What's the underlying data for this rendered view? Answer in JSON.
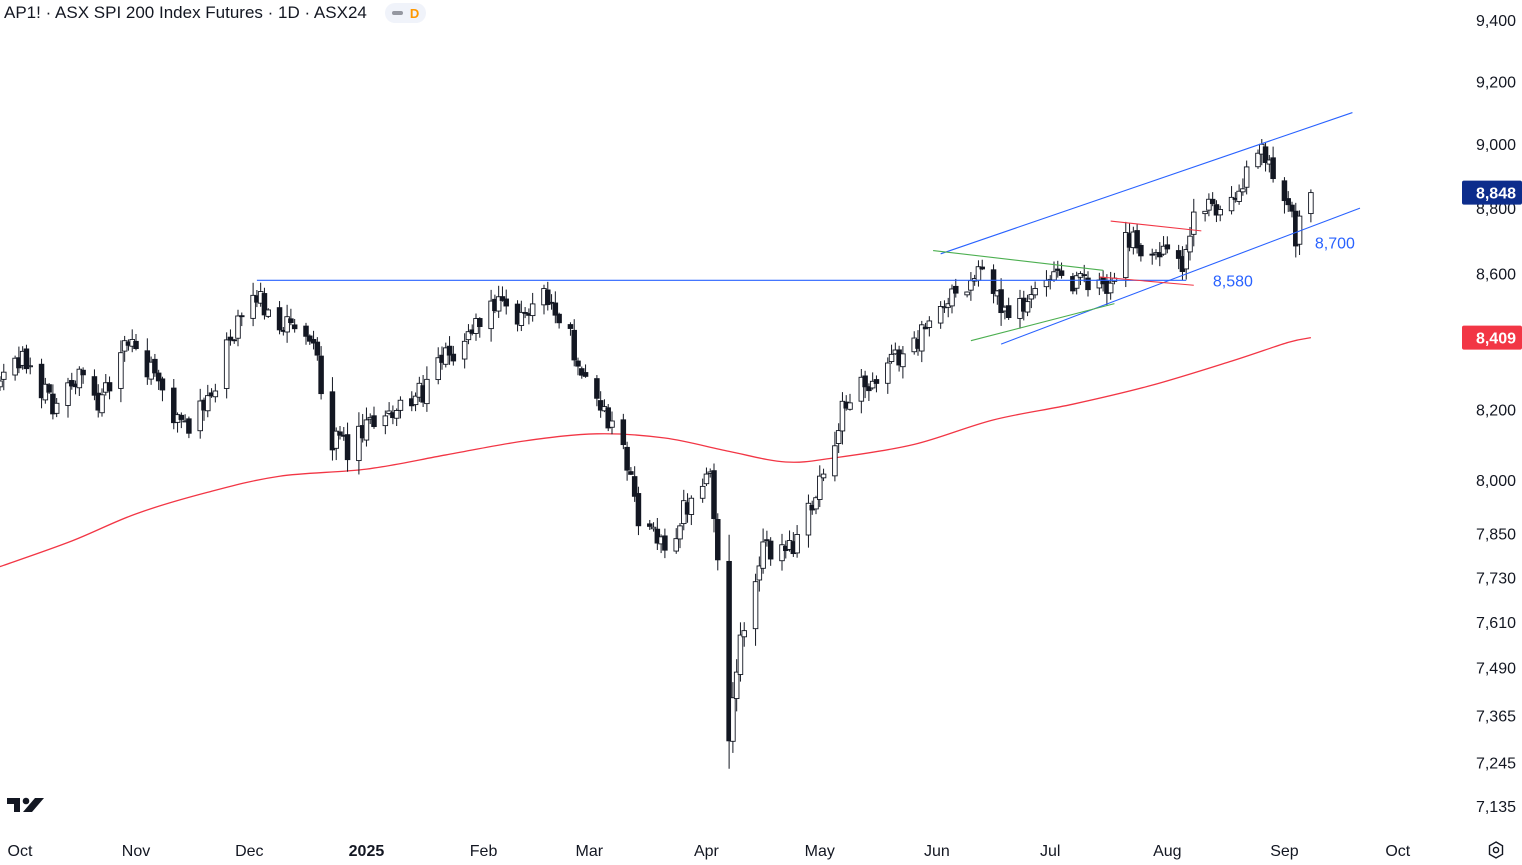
{
  "header": {
    "title": "AP1! · ASX SPI 200 Index Futures · 1D · ASX24",
    "badge": "D"
  },
  "colors": {
    "up": "#ffffff",
    "down": "#131722",
    "wick": "#131722",
    "ma": "#f23645",
    "blue_line": "#2962ff",
    "green_line": "#4caf50",
    "red_line": "#f23645",
    "last_price": "#0d2d8c",
    "ma_label": "#f23645"
  },
  "icons": {
    "logo": "tradingview-logo-icon",
    "settings": "settings-icon"
  },
  "chart_data": {
    "type": "candlestick",
    "title": "AP1! · ASX SPI 200 Index Futures · 1D · ASX24",
    "x_ticks": [
      "Oct",
      "Nov",
      "Dec",
      "2025",
      "Feb",
      "Mar",
      "Apr",
      "May",
      "Jun",
      "Jul",
      "Aug",
      "Sep",
      "Oct"
    ],
    "y_ticks": [
      9400,
      9200,
      9000,
      8800,
      8600,
      8400,
      8200,
      8000,
      7850,
      7730,
      7610,
      7490,
      7365,
      7245,
      7135
    ],
    "y_tick_labels": [
      "9,400",
      "9,200",
      "9,000",
      "8,800",
      "8,600",
      "8,400",
      "8,200",
      "8,000",
      "7,850",
      "7,730",
      "7,610",
      "7,490",
      "7,365",
      "7,245",
      "7,135"
    ],
    "y_scale": "log",
    "ylim": [
      7080,
      9440
    ],
    "xlim": [
      "2024-09-26",
      "2025-10-18"
    ],
    "last_price": {
      "value": 8848,
      "label": "8,848"
    },
    "moving_average": {
      "name": "",
      "current": 8409,
      "label": "8,409",
      "points": [
        [
          "2024-09-26",
          7760
        ],
        [
          "2024-10-15",
          7830
        ],
        [
          "2024-11-01",
          7905
        ],
        [
          "2024-11-20",
          7965
        ],
        [
          "2024-12-09",
          8010
        ],
        [
          "2025-01-01",
          8030
        ],
        [
          "2025-01-22",
          8070
        ],
        [
          "2025-02-12",
          8110
        ],
        [
          "2025-03-03",
          8130
        ],
        [
          "2025-03-21",
          8118
        ],
        [
          "2025-04-07",
          8080
        ],
        [
          "2025-04-22",
          8050
        ],
        [
          "2025-05-05",
          8062
        ],
        [
          "2025-05-26",
          8100
        ],
        [
          "2025-06-16",
          8170
        ],
        [
          "2025-07-07",
          8215
        ],
        [
          "2025-07-28",
          8270
        ],
        [
          "2025-08-18",
          8340
        ],
        [
          "2025-09-02",
          8395
        ],
        [
          "2025-09-08",
          8409
        ]
      ]
    },
    "annotations": [
      {
        "label": "8,580",
        "value": 8580
      },
      {
        "label": "8,700",
        "value": 8700
      }
    ],
    "trendlines": [
      {
        "color": "blue",
        "from": [
          "2024-12-03",
          8580
        ],
        "to": [
          "2025-08-06",
          8580
        ]
      },
      {
        "color": "blue",
        "from": [
          "2025-06-02",
          8660
        ],
        "to": [
          "2025-09-19",
          9100
        ]
      },
      {
        "color": "blue",
        "from": [
          "2025-06-18",
          8390
        ],
        "to": [
          "2025-09-21",
          8800
        ]
      },
      {
        "color": "green",
        "from": [
          "2025-05-31",
          8670
        ],
        "to": [
          "2025-07-15",
          8610
        ]
      },
      {
        "color": "green",
        "from": [
          "2025-06-10",
          8400
        ],
        "to": [
          "2025-07-18",
          8510
        ]
      },
      {
        "color": "red",
        "from": [
          "2025-07-17",
          8760
        ],
        "to": [
          "2025-08-10",
          8730
        ]
      },
      {
        "color": "red",
        "from": [
          "2025-07-14",
          8590
        ],
        "to": [
          "2025-08-08",
          8565
        ]
      }
    ],
    "anchors": [
      [
        "2024-09-26",
        8270
      ],
      [
        "2024-10-02",
        8340
      ],
      [
        "2024-10-10",
        8220
      ],
      [
        "2024-10-17",
        8290
      ],
      [
        "2024-10-23",
        8220
      ],
      [
        "2024-10-30",
        8400
      ],
      [
        "2024-11-06",
        8290
      ],
      [
        "2024-11-13",
        8150
      ],
      [
        "2024-11-19",
        8200
      ],
      [
        "2024-11-26",
        8400
      ],
      [
        "2024-12-03",
        8530
      ],
      [
        "2024-12-10",
        8450
      ],
      [
        "2024-12-18",
        8380
      ],
      [
        "2024-12-23",
        8120
      ],
      [
        "2024-12-27",
        8080
      ],
      [
        "2025-01-06",
        8200
      ],
      [
        "2025-01-13",
        8210
      ],
      [
        "2025-01-20",
        8320
      ],
      [
        "2025-01-27",
        8400
      ],
      [
        "2025-02-03",
        8510
      ],
      [
        "2025-02-10",
        8450
      ],
      [
        "2025-02-17",
        8560
      ],
      [
        "2025-02-24",
        8400
      ],
      [
        "2025-03-03",
        8230
      ],
      [
        "2025-03-10",
        8080
      ],
      [
        "2025-03-14",
        7900
      ],
      [
        "2025-03-21",
        7800
      ],
      [
        "2025-03-28",
        7960
      ],
      [
        "2025-04-02",
        8020
      ],
      [
        "2025-04-04",
        7800
      ],
      [
        "2025-04-07",
        7300
      ],
      [
        "2025-04-10",
        7550
      ],
      [
        "2025-04-16",
        7800
      ],
      [
        "2025-04-24",
        7820
      ],
      [
        "2025-05-02",
        8030
      ],
      [
        "2025-05-09",
        8250
      ],
      [
        "2025-05-16",
        8270
      ],
      [
        "2025-05-23",
        8370
      ],
      [
        "2025-05-30",
        8440
      ],
      [
        "2025-06-06",
        8560
      ],
      [
        "2025-06-13",
        8600
      ],
      [
        "2025-06-20",
        8470
      ],
      [
        "2025-06-27",
        8550
      ],
      [
        "2025-07-04",
        8580
      ],
      [
        "2025-07-11",
        8570
      ],
      [
        "2025-07-17",
        8560
      ],
      [
        "2025-07-21",
        8720
      ],
      [
        "2025-07-28",
        8650
      ],
      [
        "2025-08-01",
        8660
      ],
      [
        "2025-08-05",
        8600
      ],
      [
        "2025-08-08",
        8780
      ],
      [
        "2025-08-15",
        8800
      ],
      [
        "2025-08-22",
        8890
      ],
      [
        "2025-08-26",
        8990
      ],
      [
        "2025-08-29",
        8900
      ],
      [
        "2025-09-02",
        8850
      ],
      [
        "2025-09-04",
        8720
      ],
      [
        "2025-09-08",
        8848
      ]
    ]
  }
}
